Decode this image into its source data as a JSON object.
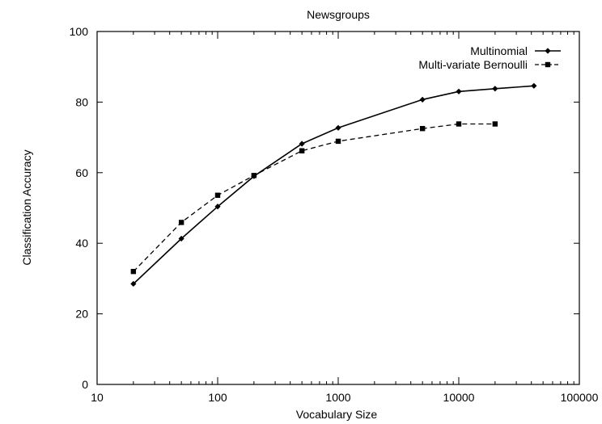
{
  "chart_data": {
    "type": "line",
    "title": "Newsgroups",
    "xlabel": "Vocabulary Size",
    "ylabel": "Classification Accuracy",
    "xscale": "log",
    "xlim": [
      10,
      100000
    ],
    "ylim": [
      0,
      100
    ],
    "xticks": [
      "10",
      "100",
      "1000",
      "10000",
      "100000"
    ],
    "yticks": [
      "0",
      "20",
      "40",
      "60",
      "80",
      "100"
    ],
    "legend_position": "top-right",
    "grid": false,
    "series": [
      {
        "name": "Multinomial",
        "line_style": "solid",
        "marker": "diamond",
        "x": [
          20,
          50,
          100,
          200,
          500,
          1000,
          5000,
          10000,
          20000,
          42000
        ],
        "y": [
          28.5,
          41.3,
          50.4,
          59.0,
          68.2,
          72.7,
          80.7,
          83.0,
          83.8,
          84.6
        ]
      },
      {
        "name": "Multi-variate Bernoulli",
        "line_style": "dashed",
        "marker": "square",
        "x": [
          20,
          50,
          100,
          200,
          500,
          1000,
          5000,
          10000,
          20000
        ],
        "y": [
          32.0,
          45.9,
          53.6,
          59.2,
          66.2,
          68.9,
          72.5,
          73.8,
          73.8
        ]
      }
    ]
  }
}
